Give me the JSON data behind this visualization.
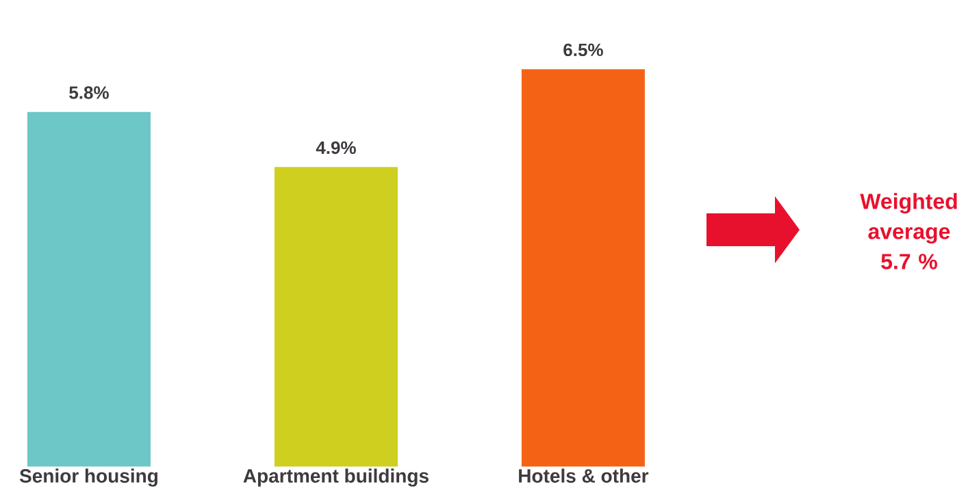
{
  "chart_data": {
    "type": "bar",
    "categories": [
      "Senior housing",
      "Apartment buildings",
      "Hotels & other"
    ],
    "values": [
      5.8,
      4.9,
      6.5
    ],
    "colors": [
      "#6cc7c6",
      "#cfcf1f",
      "#f46315"
    ],
    "value_labels": [
      "5.8%",
      "4.9%",
      "6.5%"
    ],
    "annotations": [
      "Weighted average 5.7 %"
    ]
  }
}
